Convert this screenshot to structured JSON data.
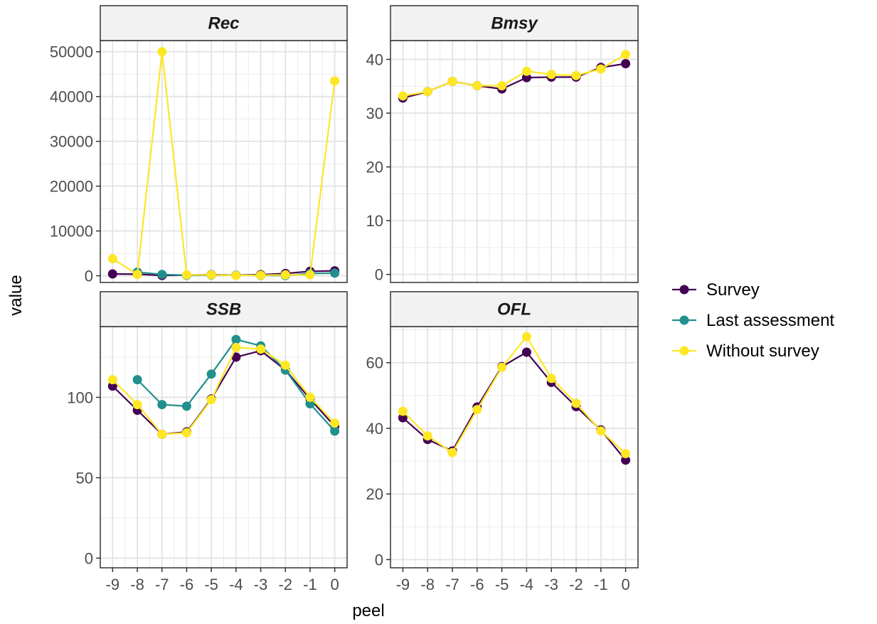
{
  "chart_data": {
    "type": "line",
    "xlabel": "peel",
    "ylabel": "value",
    "x": [
      -9,
      -8,
      -7,
      -6,
      -5,
      -4,
      -3,
      -2,
      -1,
      0
    ],
    "x_tick_labels": [
      "-9",
      "-8",
      "-7",
      "-6",
      "-5",
      "-4",
      "-3",
      "-2",
      "-1",
      "0"
    ],
    "legend": {
      "position": "right",
      "entries": [
        {
          "name": "Survey",
          "color": "#440154"
        },
        {
          "name": "Last assessment",
          "color": "#21908C"
        },
        {
          "name": "Without survey",
          "color": "#FDE725"
        }
      ]
    },
    "grid": true,
    "panels": [
      {
        "title": "Rec",
        "ylim": [
          -1500,
          52500
        ],
        "y_ticks": [
          0,
          10000,
          20000,
          30000,
          40000,
          50000
        ],
        "series": [
          {
            "name": "Survey",
            "values": [
              400,
              350,
              50,
              150,
              250,
              100,
              250,
              500,
              1000,
              1100
            ]
          },
          {
            "name": "Last assessment",
            "values": [
              null,
              800,
              300,
              100,
              150,
              100,
              50,
              50,
              500,
              600
            ]
          },
          {
            "name": "Without survey",
            "values": [
              3800,
              300,
              50000,
              200,
              200,
              50,
              100,
              200,
              200,
              43500
            ]
          }
        ]
      },
      {
        "title": "Bmsy",
        "ylim": [
          -1.5,
          43.5
        ],
        "y_ticks": [
          0,
          10,
          20,
          30,
          40
        ],
        "series": [
          {
            "name": "Survey",
            "values": [
              32.8,
              34.0,
              35.9,
              35.1,
              34.5,
              36.6,
              36.7,
              36.7,
              38.5,
              39.2
            ]
          },
          {
            "name": "Last assessment",
            "values": [
              null,
              null,
              null,
              null,
              null,
              null,
              null,
              null,
              null,
              null
            ]
          },
          {
            "name": "Without survey",
            "values": [
              33.2,
              34.0,
              35.9,
              35.1,
              35.1,
              37.8,
              37.2,
              37.0,
              38.2,
              40.9
            ]
          }
        ]
      },
      {
        "title": "SSB",
        "ylim": [
          -6,
          144
        ],
        "y_ticks": [
          0,
          50,
          100
        ],
        "series": [
          {
            "name": "Survey",
            "values": [
              107,
              92,
              77,
              78.5,
              99,
              125,
              129,
              117,
              99,
              82
            ]
          },
          {
            "name": "Last assessment",
            "values": [
              null,
              111,
              95.5,
              94.5,
              114.5,
              136,
              132,
              117,
              96,
              79
            ]
          },
          {
            "name": "Without survey",
            "values": [
              111,
              95.5,
              77,
              78,
              98.5,
              131,
              130,
              120,
              100,
              84
            ]
          }
        ]
      },
      {
        "title": "OFL",
        "ylim": [
          -2.5,
          71
        ],
        "y_ticks": [
          0,
          20,
          40,
          60
        ],
        "series": [
          {
            "name": "Survey",
            "values": [
              43.2,
              36.6,
              33.1,
              46.5,
              58.8,
              63.2,
              54.0,
              46.6,
              39.5,
              30.3
            ]
          },
          {
            "name": "Last assessment",
            "values": [
              null,
              null,
              null,
              null,
              null,
              null,
              null,
              null,
              null,
              null
            ]
          },
          {
            "name": "Without survey",
            "values": [
              45.2,
              37.7,
              32.6,
              45.7,
              58.6,
              67.9,
              55.2,
              47.6,
              39.2,
              32.3
            ]
          }
        ]
      }
    ]
  }
}
